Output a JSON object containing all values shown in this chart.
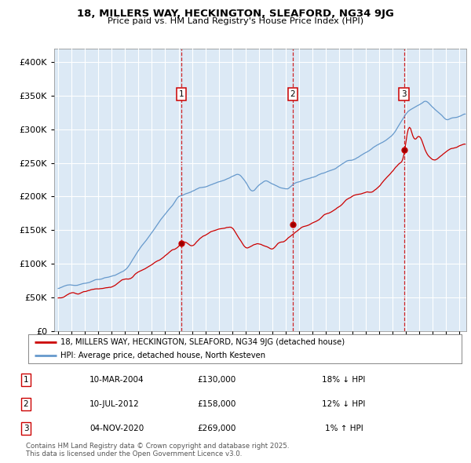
{
  "title": "18, MILLERS WAY, HECKINGTON, SLEAFORD, NG34 9JG",
  "subtitle": "Price paid vs. HM Land Registry's House Price Index (HPI)",
  "legend_text_1": "18, MILLERS WAY, HECKINGTON, SLEAFORD, NG34 9JG (detached house)",
  "legend_text_2": "HPI: Average price, detached house, North Kesteven",
  "transactions": [
    {
      "num": 1,
      "date": "10-MAR-2004",
      "price": 130000,
      "hpi_rel": "18% ↓ HPI",
      "year": 2004.19
    },
    {
      "num": 2,
      "date": "10-JUL-2012",
      "price": 158000,
      "hpi_rel": "12% ↓ HPI",
      "year": 2012.52
    },
    {
      "num": 3,
      "date": "04-NOV-2020",
      "price": 269000,
      "hpi_rel": "1% ↑ HPI",
      "year": 2020.84
    }
  ],
  "footer": "Contains HM Land Registry data © Crown copyright and database right 2025.\nThis data is licensed under the Open Government Licence v3.0.",
  "plot_bg_color": "#dce9f5",
  "price_color": "#cc0000",
  "hpi_color": "#6699cc",
  "dashed_color": "#cc0000",
  "ylim": [
    0,
    420000
  ],
  "yticks": [
    0,
    50000,
    100000,
    150000,
    200000,
    250000,
    300000,
    350000,
    400000
  ],
  "xlim_start": 1994.7,
  "xlim_end": 2025.5
}
